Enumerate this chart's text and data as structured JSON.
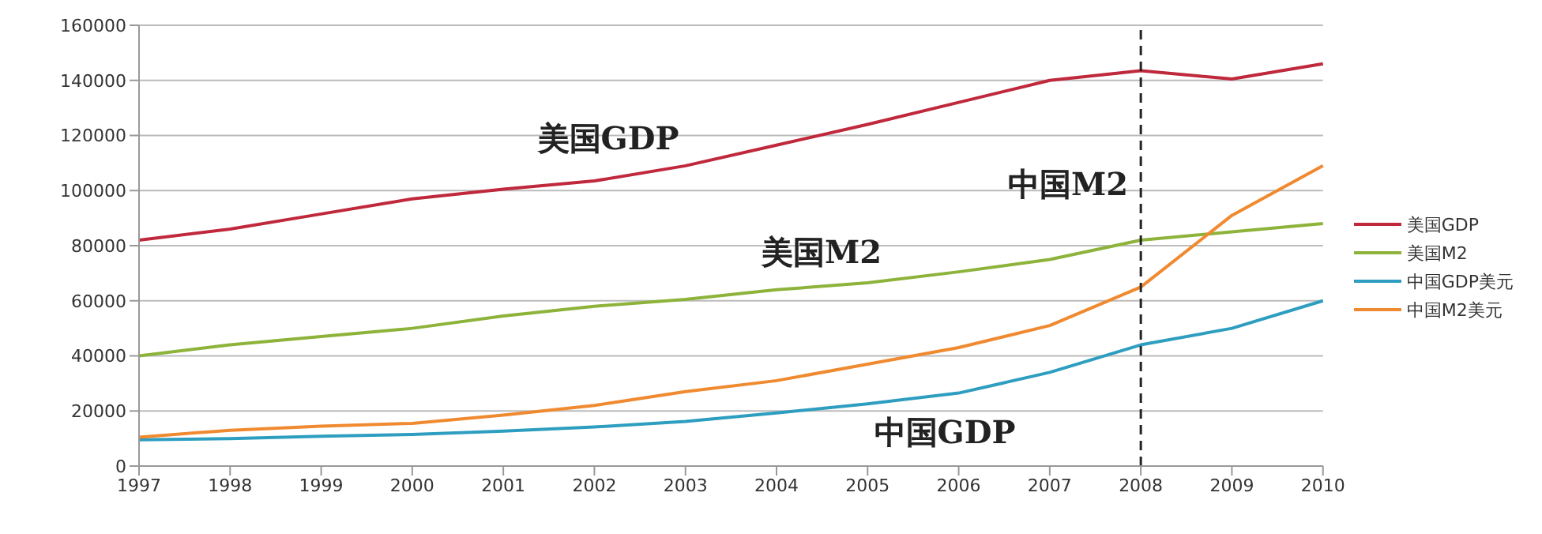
{
  "chart_data": {
    "type": "line",
    "categories": [
      "1997",
      "1998",
      "1999",
      "2000",
      "2001",
      "2002",
      "2003",
      "2004",
      "2005",
      "2006",
      "2007",
      "2008",
      "2009",
      "2010"
    ],
    "series": [
      {
        "name": "美国GDP",
        "color": "#c0283c",
        "values": [
          82000,
          86000,
          91500,
          97000,
          100500,
          103500,
          109000,
          116500,
          124000,
          132000,
          140000,
          143500,
          140500,
          146000
        ]
      },
      {
        "name": "美国M2",
        "color": "#8db33a",
        "values": [
          40000,
          44000,
          47000,
          50000,
          54500,
          58000,
          60500,
          64000,
          66500,
          70500,
          75000,
          82000,
          85000,
          88000
        ]
      },
      {
        "name": "中国GDP美元",
        "color": "#2e9ec0",
        "values": [
          9500,
          10000,
          10800,
          11500,
          12700,
          14200,
          16200,
          19300,
          22600,
          26500,
          34000,
          44000,
          50000,
          60000
        ]
      },
      {
        "name": "中国M2美元",
        "color": "#f08a30",
        "values": [
          10500,
          13000,
          14500,
          15500,
          18500,
          22000,
          27000,
          31000,
          37000,
          43000,
          51000,
          65000,
          91000,
          109000
        ]
      }
    ],
    "ylim": [
      0,
      160000
    ],
    "yticks": [
      0,
      20000,
      40000,
      60000,
      80000,
      100000,
      120000,
      140000,
      160000
    ],
    "grid": "y",
    "legend": "right",
    "marker": "none",
    "line_style": "solid",
    "ref_lines": [
      {
        "axis": "x",
        "value": "2008",
        "line_style": "dashed",
        "color": "#222222"
      }
    ],
    "annotations": [
      "美国GDP",
      "美国M2",
      "中国M2",
      "中国GDP"
    ]
  }
}
